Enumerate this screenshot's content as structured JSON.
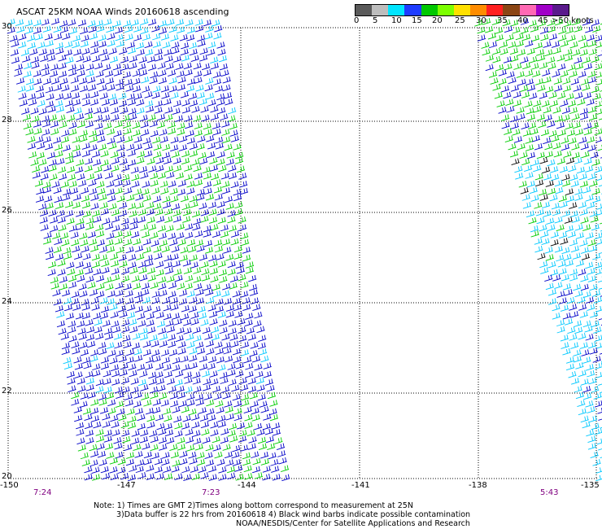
{
  "title": "ASCAT 25KM NOAA Winds 20160618 ascending",
  "legend": {
    "labels": [
      "0",
      "5",
      "10",
      "15",
      "20",
      "25",
      "30",
      "35",
      "40",
      "45",
      ">50 knots"
    ],
    "colors": [
      "#5a5a5a",
      "#bdbdbd",
      "#00e5ff",
      "#1e3cff",
      "#00c800",
      "#7cff00",
      "#ffe000",
      "#ff8c00",
      "#ff2020",
      "#8b4513",
      "#ff69b4",
      "#a000c8",
      "#5a1a8c"
    ]
  },
  "map": {
    "lat_labels": [
      "30",
      "28",
      "26",
      "24",
      "22",
      "20"
    ],
    "lon_labels": [
      "-150",
      "-147",
      "-144",
      "-141",
      "-138",
      "-135"
    ],
    "time_labels": [
      "7:24",
      "7:23",
      "5:43"
    ]
  },
  "notes": {
    "line1": "Note: 1) Times are GMT 2)Times along bottom correspond to measurement at 25N",
    "line2": "3)Data buffer is 22 hrs from 20160618 4) Black wind barbs indicate possible contamination",
    "line3": "NOAA/NESDIS/Center for Satellite Applications and Research"
  },
  "wind_colors": {
    "light": "#00c8ff",
    "medium": "#0000c8",
    "strong": "#00cc00",
    "contaminated": "#000000"
  }
}
